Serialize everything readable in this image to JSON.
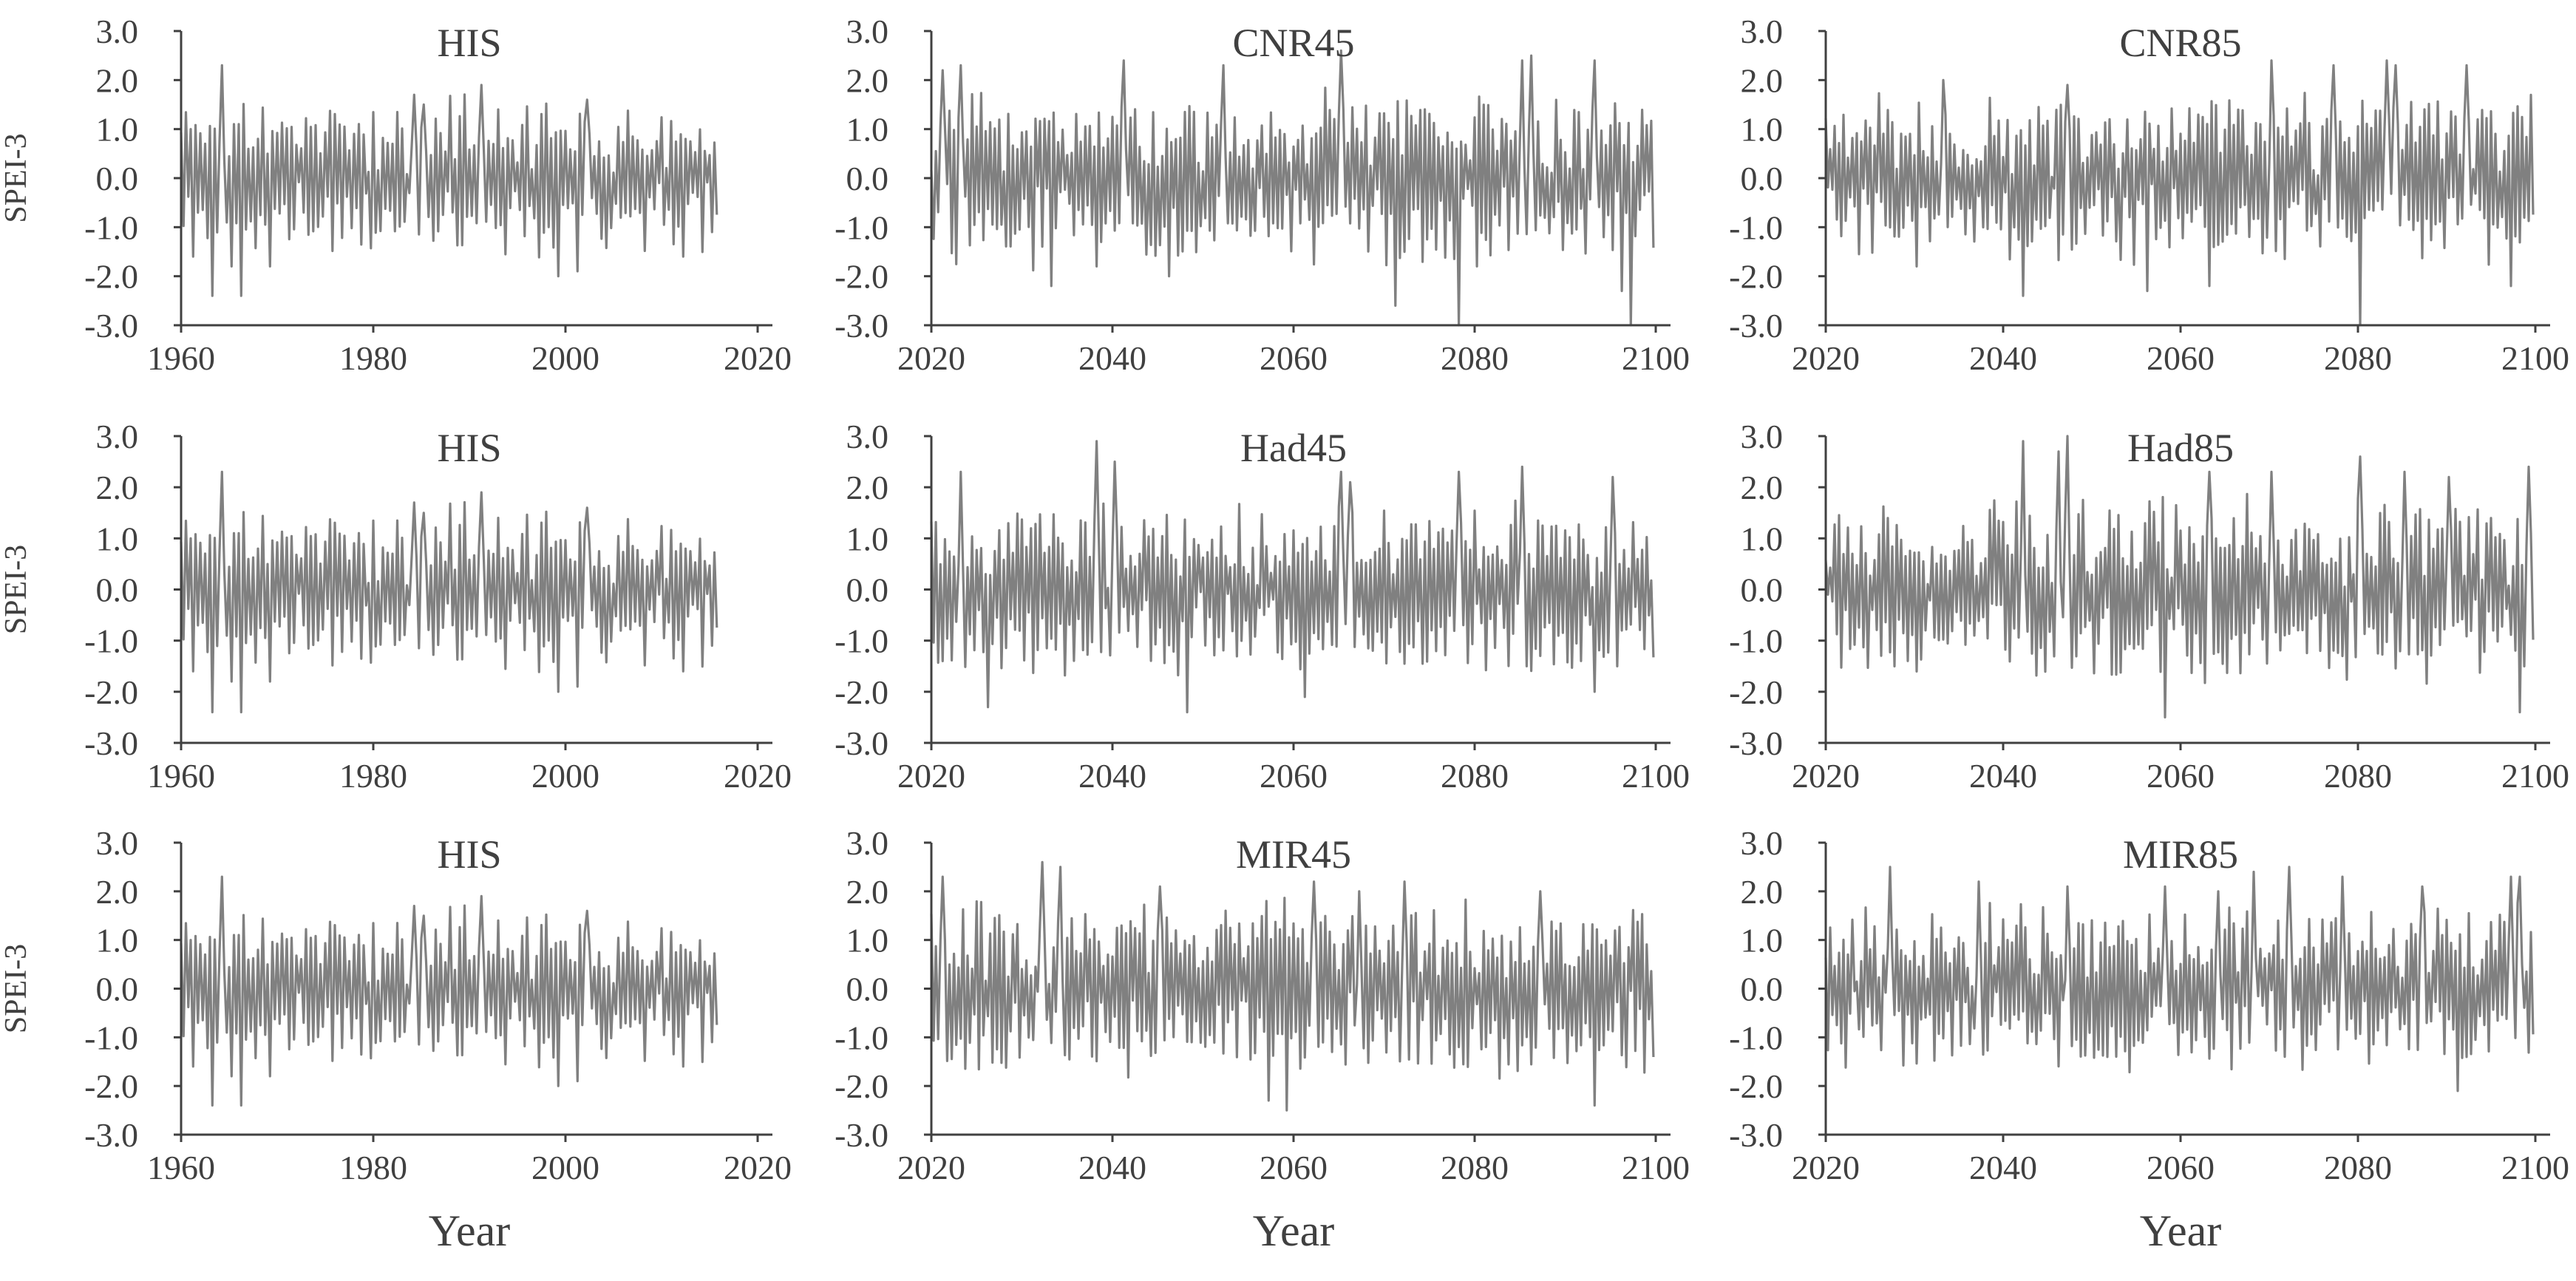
{
  "figure": {
    "xlabel": "Year",
    "ylabel": "SPEI-3"
  },
  "colors": {
    "series": "#808080",
    "axis": "#404040",
    "text": "#404040",
    "background": "#ffffff"
  },
  "chart_data": [
    {
      "type": "line",
      "title": "HIS",
      "ylabel": "SPEI-3",
      "xlabel": "",
      "xlim": [
        1960,
        2020
      ],
      "ylim": [
        -3,
        3
      ],
      "xticks": [
        1960,
        1980,
        2000,
        2020
      ],
      "yticks": [
        3,
        2,
        1,
        0,
        -1,
        -2,
        -3
      ],
      "ytick_labels": [
        "3.0",
        "2.0",
        "1.0",
        "0.0",
        "-1.0",
        "-2.0",
        "-3.0"
      ],
      "data_range": [
        1960,
        2015
      ],
      "amp": 1.2,
      "seed": 11,
      "row": 0,
      "col": 0,
      "series": [
        {
          "x": [
            1961,
            1963,
            1964,
            1965,
            1966,
            1969,
            1984,
            1985,
            1991,
            1999,
            2001,
            2002,
            2012
          ],
          "y": [
            -1.6,
            -2.4,
            2.3,
            -1.8,
            -2.4,
            -1.8,
            1.7,
            1.5,
            1.9,
            -2.0,
            -1.9,
            1.6,
            -1.6
          ]
        }
      ]
    },
    {
      "type": "line",
      "title": "CNR45",
      "ylabel": "",
      "xlabel": "",
      "xlim": [
        2020,
        2100
      ],
      "ylim": [
        -3,
        3
      ],
      "xticks": [
        2020,
        2040,
        2060,
        2080,
        2100
      ],
      "yticks": [
        3,
        2,
        1,
        0,
        -1,
        -2,
        -3
      ],
      "ytick_labels": [
        "3.0",
        "2.0",
        "1.0",
        "0.0",
        "-1.0",
        "-2.0",
        "-3.0"
      ],
      "data_range": [
        2020,
        2099
      ],
      "amp": 1.3,
      "seed": 23,
      "row": 0,
      "col": 1,
      "series": [
        {
          "x": [
            2021,
            2023,
            2033,
            2038,
            2041,
            2046,
            2052,
            2065,
            2071,
            2078,
            2085,
            2086,
            2093,
            2096,
            2097
          ],
          "y": [
            2.2,
            2.3,
            -2.2,
            -1.8,
            2.4,
            -2.0,
            2.3,
            2.6,
            -2.6,
            -3.0,
            2.4,
            2.5,
            2.4,
            -2.3,
            -3.0
          ]
        }
      ]
    },
    {
      "type": "line",
      "title": "CNR85",
      "ylabel": "",
      "xlabel": "",
      "xlim": [
        2020,
        2100
      ],
      "ylim": [
        -3,
        3
      ],
      "xticks": [
        2020,
        2040,
        2060,
        2080,
        2100
      ],
      "yticks": [
        3,
        2,
        1,
        0,
        -1,
        -2,
        -3
      ],
      "ytick_labels": [
        "3.0",
        "2.0",
        "1.0",
        "0.0",
        "-1.0",
        "-2.0",
        "-3.0"
      ],
      "data_range": [
        2020,
        2099
      ],
      "amp": 1.2,
      "seed": 37,
      "row": 0,
      "col": 2,
      "series": [
        {
          "x": [
            2030,
            2033,
            2042,
            2047,
            2056,
            2063,
            2070,
            2077,
            2080,
            2083,
            2084,
            2092,
            2097
          ],
          "y": [
            -1.8,
            2.0,
            -2.4,
            1.9,
            -2.3,
            -2.2,
            2.4,
            2.3,
            -3.0,
            2.4,
            2.3,
            2.3,
            -2.2
          ]
        }
      ]
    },
    {
      "type": "line",
      "title": "HIS",
      "ylabel": "SPEI-3",
      "xlabel": "",
      "xlim": [
        1960,
        2020
      ],
      "ylim": [
        -3,
        3
      ],
      "xticks": [
        1960,
        1980,
        2000,
        2020
      ],
      "yticks": [
        3,
        2,
        1,
        0,
        -1,
        -2,
        -3
      ],
      "ytick_labels": [
        "3.0",
        "2.0",
        "1.0",
        "0.0",
        "-1.0",
        "-2.0",
        "-3.0"
      ],
      "data_range": [
        1960,
        2015
      ],
      "amp": 1.2,
      "seed": 11,
      "row": 1,
      "col": 0,
      "series": [
        {
          "x": [
            1961,
            1963,
            1964,
            1965,
            1966,
            1969,
            1984,
            1985,
            1991,
            1999,
            2001,
            2002,
            2012
          ],
          "y": [
            -1.6,
            -2.4,
            2.3,
            -1.8,
            -2.4,
            -1.8,
            1.7,
            1.5,
            1.9,
            -2.0,
            -1.9,
            1.6,
            -1.6
          ]
        }
      ]
    },
    {
      "type": "line",
      "title": "Had45",
      "ylabel": "",
      "xlabel": "",
      "xlim": [
        2020,
        2100
      ],
      "ylim": [
        -3,
        3
      ],
      "xticks": [
        2020,
        2040,
        2060,
        2080,
        2100
      ],
      "yticks": [
        3,
        2,
        1,
        0,
        -1,
        -2,
        -3
      ],
      "ytick_labels": [
        "3.0",
        "2.0",
        "1.0",
        "0.0",
        "-1.0",
        "-2.0",
        "-3.0"
      ],
      "data_range": [
        2020,
        2099
      ],
      "amp": 1.2,
      "seed": 41,
      "row": 1,
      "col": 1,
      "series": [
        {
          "x": [
            2023,
            2026,
            2038,
            2040,
            2048,
            2061,
            2065,
            2066,
            2078,
            2085,
            2093,
            2095
          ],
          "y": [
            2.3,
            -2.3,
            2.9,
            2.5,
            -2.4,
            -2.1,
            2.3,
            2.1,
            2.3,
            2.4,
            -2.0,
            2.2
          ]
        }
      ]
    },
    {
      "type": "line",
      "title": "Had85",
      "ylabel": "",
      "xlabel": "",
      "xlim": [
        2020,
        2100
      ],
      "ylim": [
        -3,
        3
      ],
      "xticks": [
        2020,
        2040,
        2060,
        2080,
        2100
      ],
      "yticks": [
        3,
        2,
        1,
        0,
        -1,
        -2,
        -3
      ],
      "ytick_labels": [
        "3.0",
        "2.0",
        "1.0",
        "0.0",
        "-1.0",
        "-2.0",
        "-3.0"
      ],
      "data_range": [
        2020,
        2099
      ],
      "amp": 1.3,
      "seed": 53,
      "row": 1,
      "col": 2,
      "series": [
        {
          "x": [
            2042,
            2046,
            2047,
            2058,
            2063,
            2070,
            2080,
            2085,
            2090,
            2098,
            2099
          ],
          "y": [
            2.9,
            2.7,
            3.0,
            -2.5,
            2.3,
            2.3,
            2.6,
            2.3,
            2.2,
            -2.4,
            2.4
          ]
        }
      ]
    },
    {
      "type": "line",
      "title": "HIS",
      "ylabel": "SPEI-3",
      "xlabel": "Year",
      "xlim": [
        1960,
        2020
      ],
      "ylim": [
        -3,
        3
      ],
      "xticks": [
        1960,
        1980,
        2000,
        2020
      ],
      "yticks": [
        3,
        2,
        1,
        0,
        -1,
        -2,
        -3
      ],
      "ytick_labels": [
        "3.0",
        "2.0",
        "1.0",
        "0.0",
        "-1.0",
        "-2.0",
        "-3.0"
      ],
      "data_range": [
        1960,
        2015
      ],
      "amp": 1.2,
      "seed": 11,
      "row": 2,
      "col": 0,
      "series": [
        {
          "x": [
            1961,
            1963,
            1964,
            1965,
            1966,
            1969,
            1984,
            1985,
            1991,
            1999,
            2001,
            2002,
            2012
          ],
          "y": [
            -1.6,
            -2.4,
            2.3,
            -1.8,
            -2.4,
            -1.8,
            1.7,
            1.5,
            1.9,
            -2.0,
            -1.9,
            1.6,
            -1.6
          ]
        }
      ]
    },
    {
      "type": "line",
      "title": "MIR45",
      "ylabel": "",
      "xlabel": "Year",
      "xlim": [
        2020,
        2100
      ],
      "ylim": [
        -3,
        3
      ],
      "xticks": [
        2020,
        2040,
        2060,
        2080,
        2100
      ],
      "yticks": [
        3,
        2,
        1,
        0,
        -1,
        -2,
        -3
      ],
      "ytick_labels": [
        "3.0",
        "2.0",
        "1.0",
        "0.0",
        "-1.0",
        "-2.0",
        "-3.0"
      ],
      "data_range": [
        2020,
        2099
      ],
      "amp": 1.3,
      "seed": 67,
      "row": 2,
      "col": 1,
      "series": [
        {
          "x": [
            2021,
            2032,
            2034,
            2045,
            2057,
            2059,
            2062,
            2067,
            2072,
            2087,
            2093
          ],
          "y": [
            2.3,
            2.6,
            2.5,
            2.1,
            -2.3,
            -2.5,
            2.2,
            2.0,
            2.2,
            2.0,
            -2.4
          ]
        }
      ]
    },
    {
      "type": "line",
      "title": "MIR85",
      "ylabel": "",
      "xlabel": "Year",
      "xlim": [
        2020,
        2100
      ],
      "ylim": [
        -3,
        3
      ],
      "xticks": [
        2020,
        2040,
        2060,
        2080,
        2100
      ],
      "yticks": [
        3,
        2,
        1,
        0,
        -1,
        -2,
        -3
      ],
      "ytick_labels": [
        "3.0",
        "2.0",
        "1.0",
        "0.0",
        "-1.0",
        "-2.0",
        "-3.0"
      ],
      "data_range": [
        2020,
        2099
      ],
      "amp": 1.2,
      "seed": 79,
      "row": 2,
      "col": 2,
      "series": [
        {
          "x": [
            2027,
            2037,
            2047,
            2058,
            2064,
            2068,
            2072,
            2078,
            2087,
            2091,
            2097,
            2098
          ],
          "y": [
            2.5,
            2.2,
            2.1,
            2.1,
            2.0,
            2.4,
            2.5,
            2.3,
            2.1,
            -2.1,
            2.3,
            2.3
          ]
        }
      ]
    }
  ]
}
